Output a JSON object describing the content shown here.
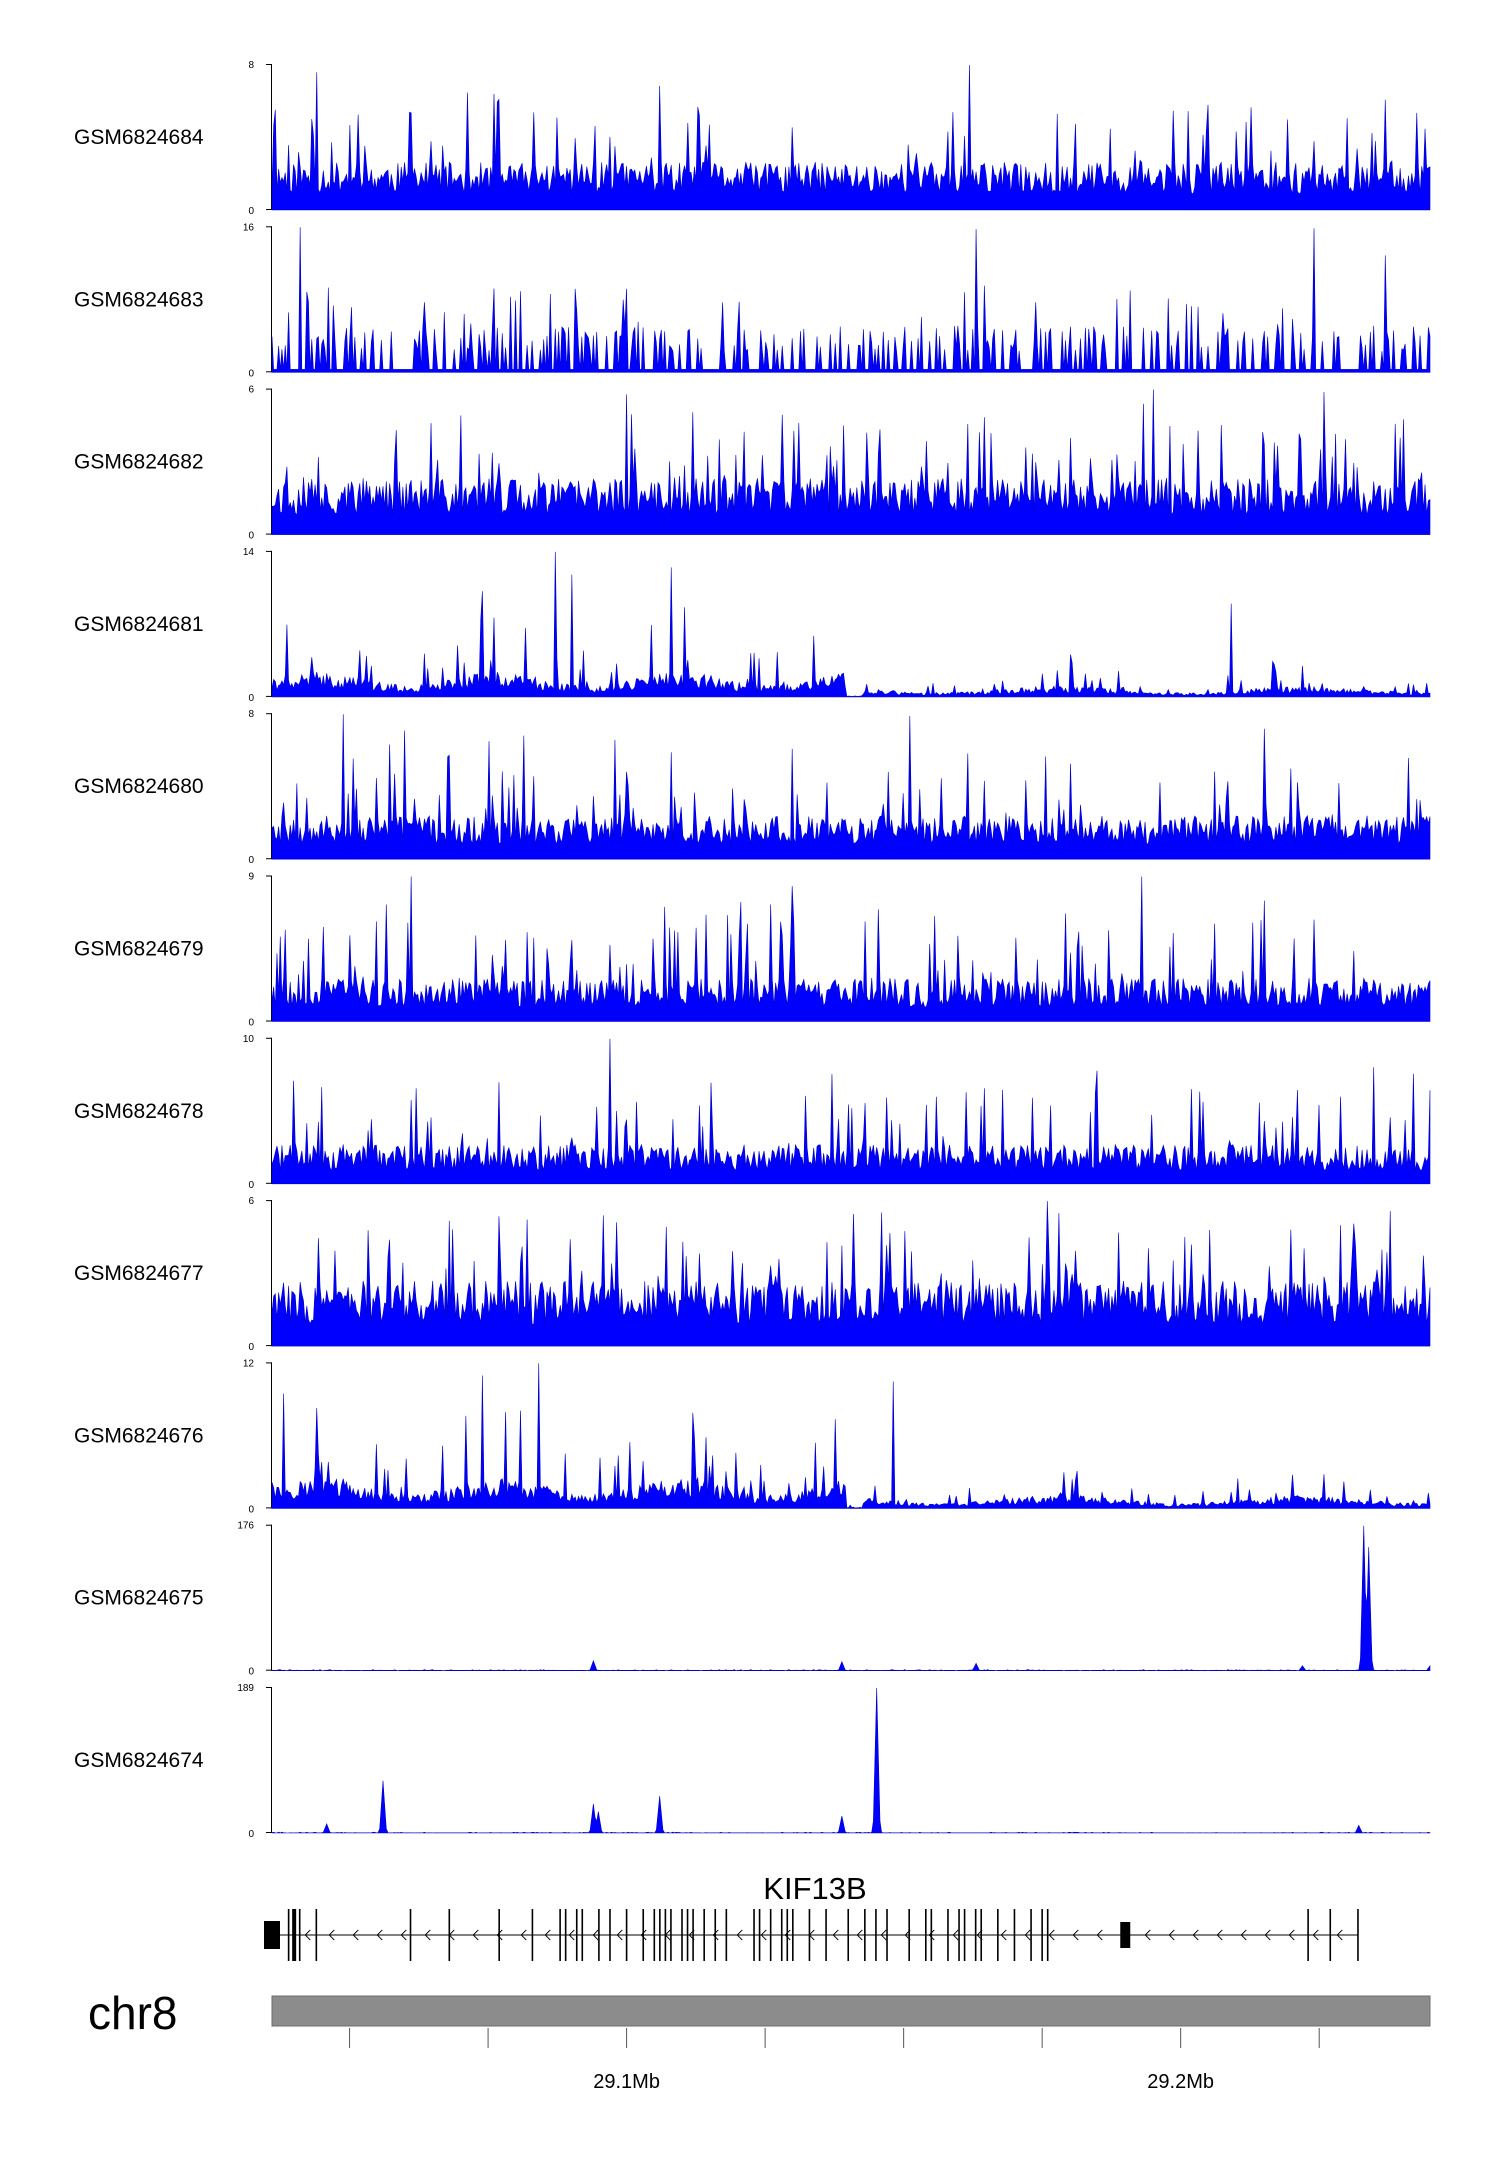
{
  "chart_data": {
    "type": "area",
    "chromosome": "chr8",
    "region_mb": [
      29.036,
      29.245
    ],
    "axis_ticks_mb": [
      29.1,
      29.2
    ],
    "axis_tick_labels": [
      "29.1Mb",
      "29.2Mb"
    ],
    "minor_ticks_mb": [
      29.05,
      29.075,
      29.125,
      29.15,
      29.175,
      29.225
    ],
    "gene": {
      "name": "KIF13B",
      "start_mb": 29.036,
      "end_mb": 29.232,
      "strand": "-",
      "exons_mb": [
        29.036,
        29.039,
        29.04,
        29.041,
        29.044,
        29.061,
        29.068,
        29.077,
        29.083,
        29.088,
        29.089,
        29.091,
        29.092,
        29.095,
        29.097,
        29.1,
        29.103,
        29.105,
        29.106,
        29.107,
        29.108,
        29.11,
        29.111,
        29.112,
        29.114,
        29.116,
        29.118,
        29.123,
        29.124,
        29.126,
        29.128,
        29.129,
        29.13,
        29.133,
        29.136,
        29.14,
        29.143,
        29.145,
        29.147,
        29.151,
        29.154,
        29.155,
        29.158,
        29.16,
        29.161,
        29.163,
        29.164,
        29.167,
        29.17,
        29.173,
        29.175,
        29.176,
        29.19,
        29.223,
        29.227,
        29.232
      ]
    },
    "color": "#0000ff",
    "tracks": [
      {
        "name": "GSM6824684",
        "ymax": 8,
        "ymin": 0,
        "style": "noisy",
        "base": 0.22,
        "spike": 0.55,
        "density": 0.5,
        "seed": 11,
        "peaks": [
          {
            "x": 29.044,
            "y": 7.6
          },
          {
            "x": 29.162,
            "y": 8.0
          },
          {
            "x": 29.077,
            "y": 6.1
          },
          {
            "x": 29.205,
            "y": 5.8
          }
        ]
      },
      {
        "name": "GSM6824683",
        "ymax": 16,
        "ymin": 0,
        "style": "sparse",
        "base": 0.18,
        "spike": 0.55,
        "density": 0.35,
        "seed": 23,
        "peaks": [
          {
            "x": 29.041,
            "y": 16.0
          },
          {
            "x": 29.224,
            "y": 15.9
          },
          {
            "x": 29.163,
            "y": 15.8
          },
          {
            "x": 29.237,
            "y": 12.9
          }
        ]
      },
      {
        "name": "GSM6824682",
        "ymax": 6,
        "ymin": 0,
        "style": "noisy",
        "base": 0.26,
        "spike": 0.6,
        "density": 0.55,
        "seed": 37,
        "peaks": [
          {
            "x": 29.1,
            "y": 5.8
          },
          {
            "x": 29.195,
            "y": 6.0
          },
          {
            "x": 29.226,
            "y": 5.9
          }
        ]
      },
      {
        "name": "GSM6824681",
        "ymax": 14,
        "ymin": 0,
        "style": "regional",
        "base": 0.1,
        "spike": 0.45,
        "density": 0.7,
        "seed": 41,
        "peaks": [
          {
            "x": 29.087,
            "y": 14.0
          },
          {
            "x": 29.09,
            "y": 11.8
          },
          {
            "x": 29.108,
            "y": 12.5
          },
          {
            "x": 29.209,
            "y": 9.0
          },
          {
            "x": 29.074,
            "y": 10.2
          }
        ]
      },
      {
        "name": "GSM6824680",
        "ymax": 8,
        "ymin": 0,
        "style": "noisy",
        "base": 0.2,
        "spike": 0.6,
        "density": 0.5,
        "seed": 53,
        "peaks": [
          {
            "x": 29.049,
            "y": 8.0
          },
          {
            "x": 29.151,
            "y": 7.9
          },
          {
            "x": 29.215,
            "y": 7.2
          },
          {
            "x": 29.06,
            "y": 7.1
          }
        ]
      },
      {
        "name": "GSM6824679",
        "ymax": 9,
        "ymin": 0,
        "style": "noisy",
        "base": 0.2,
        "spike": 0.55,
        "density": 0.5,
        "seed": 67,
        "peaks": [
          {
            "x": 29.061,
            "y": 9.0
          },
          {
            "x": 29.13,
            "y": 8.4
          },
          {
            "x": 29.193,
            "y": 9.0
          },
          {
            "x": 29.215,
            "y": 7.5
          }
        ]
      },
      {
        "name": "GSM6824678",
        "ymax": 10,
        "ymin": 0,
        "style": "noisy",
        "base": 0.18,
        "spike": 0.55,
        "density": 0.5,
        "seed": 71,
        "peaks": [
          {
            "x": 29.097,
            "y": 10.0
          },
          {
            "x": 29.185,
            "y": 7.8
          },
          {
            "x": 29.077,
            "y": 7.0
          }
        ]
      },
      {
        "name": "GSM6824677",
        "ymax": 6,
        "ymin": 0,
        "style": "noisy",
        "base": 0.3,
        "spike": 0.55,
        "density": 0.6,
        "seed": 83,
        "peaks": [
          {
            "x": 29.176,
            "y": 6.0
          },
          {
            "x": 29.178,
            "y": 5.5
          },
          {
            "x": 29.229,
            "y": 5.0
          }
        ]
      },
      {
        "name": "GSM6824676",
        "ymax": 12,
        "ymin": 0,
        "style": "regional",
        "base": 0.12,
        "spike": 0.5,
        "density": 0.7,
        "seed": 97,
        "peaks": [
          {
            "x": 29.084,
            "y": 12.0
          },
          {
            "x": 29.074,
            "y": 11.0
          },
          {
            "x": 29.148,
            "y": 10.5
          },
          {
            "x": 29.038,
            "y": 9.5
          }
        ]
      },
      {
        "name": "GSM6824675",
        "ymax": 176,
        "ymin": 0,
        "style": "flat",
        "base": 0.008,
        "spike": 0.01,
        "density": 0.3,
        "seed": 101,
        "peaks": [
          {
            "x": 29.094,
            "y": 12
          },
          {
            "x": 29.139,
            "y": 11
          },
          {
            "x": 29.163,
            "y": 9
          },
          {
            "x": 29.233,
            "y": 176
          },
          {
            "x": 29.234,
            "y": 150
          },
          {
            "x": 29.222,
            "y": 6
          },
          {
            "x": 29.245,
            "y": 6
          }
        ]
      },
      {
        "name": "GSM6824674",
        "ymax": 189,
        "ymin": 0,
        "style": "flat",
        "base": 0.006,
        "spike": 0.01,
        "density": 0.3,
        "seed": 113,
        "peaks": [
          {
            "x": 29.056,
            "y": 68
          },
          {
            "x": 29.046,
            "y": 12
          },
          {
            "x": 29.094,
            "y": 38
          },
          {
            "x": 29.095,
            "y": 28
          },
          {
            "x": 29.106,
            "y": 48
          },
          {
            "x": 29.139,
            "y": 22
          },
          {
            "x": 29.145,
            "y": 189
          },
          {
            "x": 29.232,
            "y": 10
          }
        ]
      }
    ]
  }
}
